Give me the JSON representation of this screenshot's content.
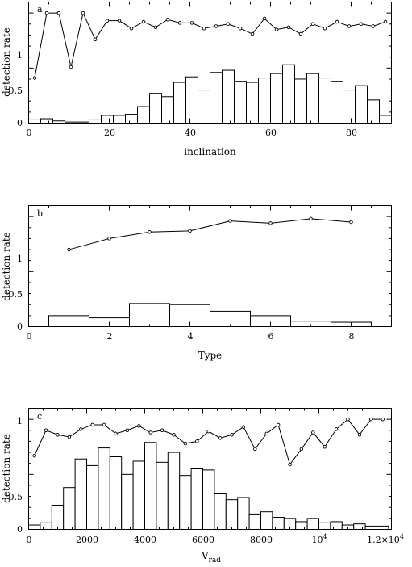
{
  "chart_data": [
    {
      "type": "bar",
      "panel_label": "a",
      "xlabel": "inclination",
      "ylabel": "detection rate",
      "xlim": [
        0,
        90
      ],
      "ylim": [
        0,
        1.1
      ],
      "x_ticks": [
        "0",
        "20",
        "40",
        "60",
        "80"
      ],
      "y_ticks": [
        "0",
        "0.5",
        "1"
      ],
      "series": [
        {
          "kind": "histogram",
          "bin_width": 3,
          "x": [
            0,
            3,
            6,
            9,
            12,
            15,
            18,
            21,
            24,
            27,
            30,
            33,
            36,
            39,
            42,
            45,
            48,
            51,
            54,
            57,
            60,
            63,
            66,
            69,
            72,
            75,
            78,
            81,
            84,
            87
          ],
          "values": [
            0.03,
            0.04,
            0.02,
            0.01,
            0.01,
            0.03,
            0.07,
            0.07,
            0.08,
            0.15,
            0.27,
            0.24,
            0.37,
            0.42,
            0.3,
            0.46,
            0.48,
            0.38,
            0.37,
            0.41,
            0.45,
            0.53,
            0.4,
            0.45,
            0.41,
            0.38,
            0.3,
            0.34,
            0.21,
            0.07
          ]
        },
        {
          "kind": "detection-rate",
          "x": [
            1.5,
            4.5,
            7.5,
            10.5,
            13.5,
            16.5,
            19.5,
            22.5,
            25.5,
            28.5,
            31.5,
            34.5,
            37.5,
            40.5,
            43.5,
            46.5,
            49.5,
            52.5,
            55.5,
            58.5,
            61.5,
            64.5,
            67.5,
            70.5,
            73.5,
            76.5,
            79.5,
            82.5,
            85.5,
            88.5
          ],
          "values": [
            0.41,
            1.0,
            1.0,
            0.51,
            1.0,
            0.76,
            0.93,
            0.93,
            0.86,
            0.92,
            0.87,
            0.94,
            0.91,
            0.91,
            0.86,
            0.88,
            0.9,
            0.86,
            0.81,
            0.95,
            0.85,
            0.87,
            0.81,
            0.9,
            0.86,
            0.92,
            0.88,
            0.9,
            0.88,
            0.92
          ]
        }
      ]
    },
    {
      "type": "bar",
      "panel_label": "b",
      "xlabel": "Type",
      "ylabel": "detection rate",
      "xlim": [
        0,
        9
      ],
      "ylim": [
        0,
        1.1
      ],
      "x_ticks": [
        "0",
        "2",
        "4",
        "6",
        "8"
      ],
      "y_ticks": [
        "0",
        "0.5",
        "1"
      ],
      "series": [
        {
          "kind": "histogram",
          "bin_width": 1,
          "x": [
            0.5,
            1.5,
            2.5,
            3.5,
            4.5,
            5.5,
            6.5,
            7.5
          ],
          "values": [
            0.1,
            0.08,
            0.21,
            0.2,
            0.14,
            0.1,
            0.05,
            0.04
          ]
        },
        {
          "kind": "detection-rate",
          "x": [
            1,
            2,
            3,
            4,
            5,
            6,
            7,
            8
          ],
          "values": [
            0.7,
            0.8,
            0.86,
            0.87,
            0.96,
            0.94,
            0.98,
            0.95
          ]
        }
      ]
    },
    {
      "type": "bar",
      "panel_label": "c",
      "xlabel": "V",
      "xlabel_sub": "rad",
      "ylabel": "detection rate",
      "xlim": [
        0,
        12500
      ],
      "ylim": [
        0,
        1.1
      ],
      "x_ticks": [
        "0",
        "2000",
        "4000",
        "6000",
        "8000",
        "10",
        "1.2×10"
      ],
      "x_tick_exponent": "4",
      "y_ticks": [
        "0",
        "0.5",
        "1"
      ],
      "series": [
        {
          "kind": "histogram",
          "bin_width": 400,
          "x": [
            0,
            400,
            800,
            1200,
            1600,
            2000,
            2400,
            2800,
            3200,
            3600,
            4000,
            4400,
            4800,
            5200,
            5600,
            6000,
            6400,
            6800,
            7200,
            7600,
            8000,
            8400,
            8800,
            9200,
            9600,
            10000,
            10400,
            10800,
            11200,
            11600,
            12000
          ],
          "values": [
            0.04,
            0.06,
            0.22,
            0.38,
            0.64,
            0.58,
            0.74,
            0.66,
            0.5,
            0.62,
            0.79,
            0.61,
            0.7,
            0.49,
            0.55,
            0.54,
            0.33,
            0.27,
            0.29,
            0.14,
            0.16,
            0.11,
            0.1,
            0.07,
            0.1,
            0.06,
            0.07,
            0.04,
            0.05,
            0.03,
            0.03
          ]
        },
        {
          "kind": "detection-rate",
          "x": [
            200,
            600,
            1000,
            1400,
            1800,
            2200,
            2600,
            3000,
            3400,
            3800,
            4200,
            4600,
            5000,
            5400,
            5800,
            6200,
            6600,
            7000,
            7400,
            7800,
            8200,
            8600,
            9000,
            9400,
            9800,
            10200,
            10600,
            11000,
            11400,
            11800,
            12200
          ],
          "values": [
            0.67,
            0.9,
            0.86,
            0.84,
            0.91,
            0.95,
            0.95,
            0.87,
            0.9,
            0.94,
            0.88,
            0.9,
            0.86,
            0.78,
            0.8,
            0.89,
            0.83,
            0.86,
            0.93,
            0.73,
            0.87,
            0.95,
            0.59,
            0.73,
            0.88,
            0.75,
            0.91,
            1.0,
            0.86,
            1.0,
            1.0
          ]
        }
      ]
    }
  ]
}
